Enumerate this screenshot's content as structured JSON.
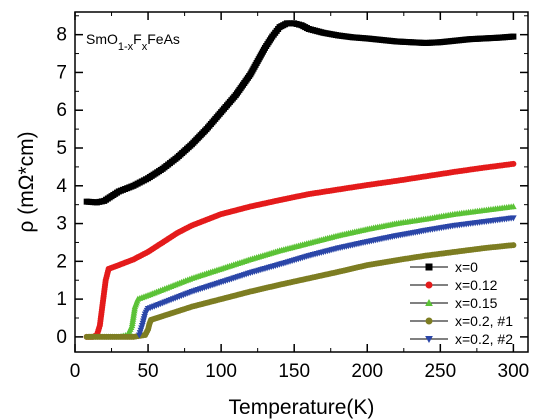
{
  "chart_data": {
    "type": "scatter",
    "title": "",
    "annotation": {
      "parts": [
        {
          "text": "SmO",
          "shift": "none"
        },
        {
          "text": "1-x",
          "shift": "sub"
        },
        {
          "text": "F",
          "shift": "none"
        },
        {
          "text": "x",
          "shift": "sub"
        },
        {
          "text": "FeAs",
          "shift": "none"
        }
      ]
    },
    "xlabel": "Temperature(K)",
    "ylabel": "ρ (mΩ*cm)",
    "xlim": [
      0,
      310
    ],
    "ylim": [
      -0.4,
      8.6
    ],
    "x_ticks": [
      0,
      50,
      100,
      150,
      200,
      250,
      300
    ],
    "y_ticks": [
      0,
      1,
      2,
      3,
      4,
      5,
      6,
      7,
      8
    ],
    "grid": false,
    "legend_position": "bottom-right",
    "series": [
      {
        "name": "x=0",
        "color": "#000000",
        "marker": "square",
        "points": [
          [
            8,
            3.58
          ],
          [
            15,
            3.56
          ],
          [
            20,
            3.6
          ],
          [
            30,
            3.85
          ],
          [
            40,
            4.0
          ],
          [
            50,
            4.2
          ],
          [
            60,
            4.45
          ],
          [
            70,
            4.75
          ],
          [
            80,
            5.1
          ],
          [
            90,
            5.5
          ],
          [
            100,
            5.95
          ],
          [
            110,
            6.4
          ],
          [
            120,
            6.95
          ],
          [
            130,
            7.65
          ],
          [
            135,
            7.95
          ],
          [
            140,
            8.2
          ],
          [
            145,
            8.3
          ],
          [
            150,
            8.3
          ],
          [
            155,
            8.25
          ],
          [
            160,
            8.15
          ],
          [
            170,
            8.05
          ],
          [
            180,
            7.98
          ],
          [
            190,
            7.93
          ],
          [
            200,
            7.9
          ],
          [
            210,
            7.86
          ],
          [
            220,
            7.82
          ],
          [
            230,
            7.8
          ],
          [
            240,
            7.78
          ],
          [
            250,
            7.8
          ],
          [
            260,
            7.84
          ],
          [
            270,
            7.88
          ],
          [
            280,
            7.9
          ],
          [
            290,
            7.92
          ],
          [
            300,
            7.95
          ]
        ]
      },
      {
        "name": "x=0.12",
        "color": "#e41b1b",
        "marker": "circle",
        "points": [
          [
            8,
            0.0
          ],
          [
            12,
            0.0
          ],
          [
            15,
            0.05
          ],
          [
            17,
            0.3
          ],
          [
            19,
            0.9
          ],
          [
            21,
            1.5
          ],
          [
            23,
            1.8
          ],
          [
            30,
            1.9
          ],
          [
            40,
            2.05
          ],
          [
            50,
            2.25
          ],
          [
            60,
            2.5
          ],
          [
            70,
            2.75
          ],
          [
            80,
            2.95
          ],
          [
            90,
            3.1
          ],
          [
            100,
            3.25
          ],
          [
            120,
            3.45
          ],
          [
            140,
            3.62
          ],
          [
            160,
            3.78
          ],
          [
            180,
            3.9
          ],
          [
            200,
            4.02
          ],
          [
            220,
            4.13
          ],
          [
            240,
            4.25
          ],
          [
            260,
            4.37
          ],
          [
            280,
            4.48
          ],
          [
            300,
            4.58
          ]
        ]
      },
      {
        "name": "x=0.15",
        "color": "#5bc236",
        "marker": "triangle-up",
        "points": [
          [
            10,
            0.0
          ],
          [
            20,
            0.0
          ],
          [
            30,
            0.0
          ],
          [
            36,
            0.05
          ],
          [
            39,
            0.3
          ],
          [
            41,
            0.8
          ],
          [
            43,
            1.0
          ],
          [
            50,
            1.1
          ],
          [
            60,
            1.25
          ],
          [
            80,
            1.55
          ],
          [
            100,
            1.8
          ],
          [
            120,
            2.05
          ],
          [
            140,
            2.28
          ],
          [
            160,
            2.48
          ],
          [
            180,
            2.68
          ],
          [
            200,
            2.85
          ],
          [
            220,
            3.0
          ],
          [
            240,
            3.12
          ],
          [
            260,
            3.25
          ],
          [
            280,
            3.35
          ],
          [
            300,
            3.45
          ]
        ]
      },
      {
        "name": "x=0.2, #1",
        "color": "#7d7d22",
        "marker": "circle",
        "points": [
          [
            8,
            0.0
          ],
          [
            20,
            0.0
          ],
          [
            30,
            0.0
          ],
          [
            40,
            0.0
          ],
          [
            48,
            0.05
          ],
          [
            50,
            0.2
          ],
          [
            51,
            0.35
          ],
          [
            52,
            0.45
          ],
          [
            60,
            0.55
          ],
          [
            80,
            0.8
          ],
          [
            100,
            1.0
          ],
          [
            120,
            1.2
          ],
          [
            140,
            1.38
          ],
          [
            160,
            1.55
          ],
          [
            180,
            1.72
          ],
          [
            200,
            1.9
          ],
          [
            220,
            2.03
          ],
          [
            240,
            2.15
          ],
          [
            260,
            2.25
          ],
          [
            280,
            2.35
          ],
          [
            300,
            2.43
          ]
        ]
      },
      {
        "name": "x=0.2, #2",
        "color": "#2b46a8",
        "marker": "triangle-down",
        "points": [
          [
            44,
            0.05
          ],
          [
            46,
            0.3
          ],
          [
            48,
            0.6
          ],
          [
            50,
            0.75
          ],
          [
            60,
            0.9
          ],
          [
            80,
            1.2
          ],
          [
            100,
            1.45
          ],
          [
            120,
            1.7
          ],
          [
            140,
            1.92
          ],
          [
            160,
            2.15
          ],
          [
            180,
            2.35
          ],
          [
            200,
            2.52
          ],
          [
            220,
            2.68
          ],
          [
            240,
            2.82
          ],
          [
            260,
            2.95
          ],
          [
            280,
            3.05
          ],
          [
            300,
            3.15
          ]
        ]
      }
    ]
  }
}
